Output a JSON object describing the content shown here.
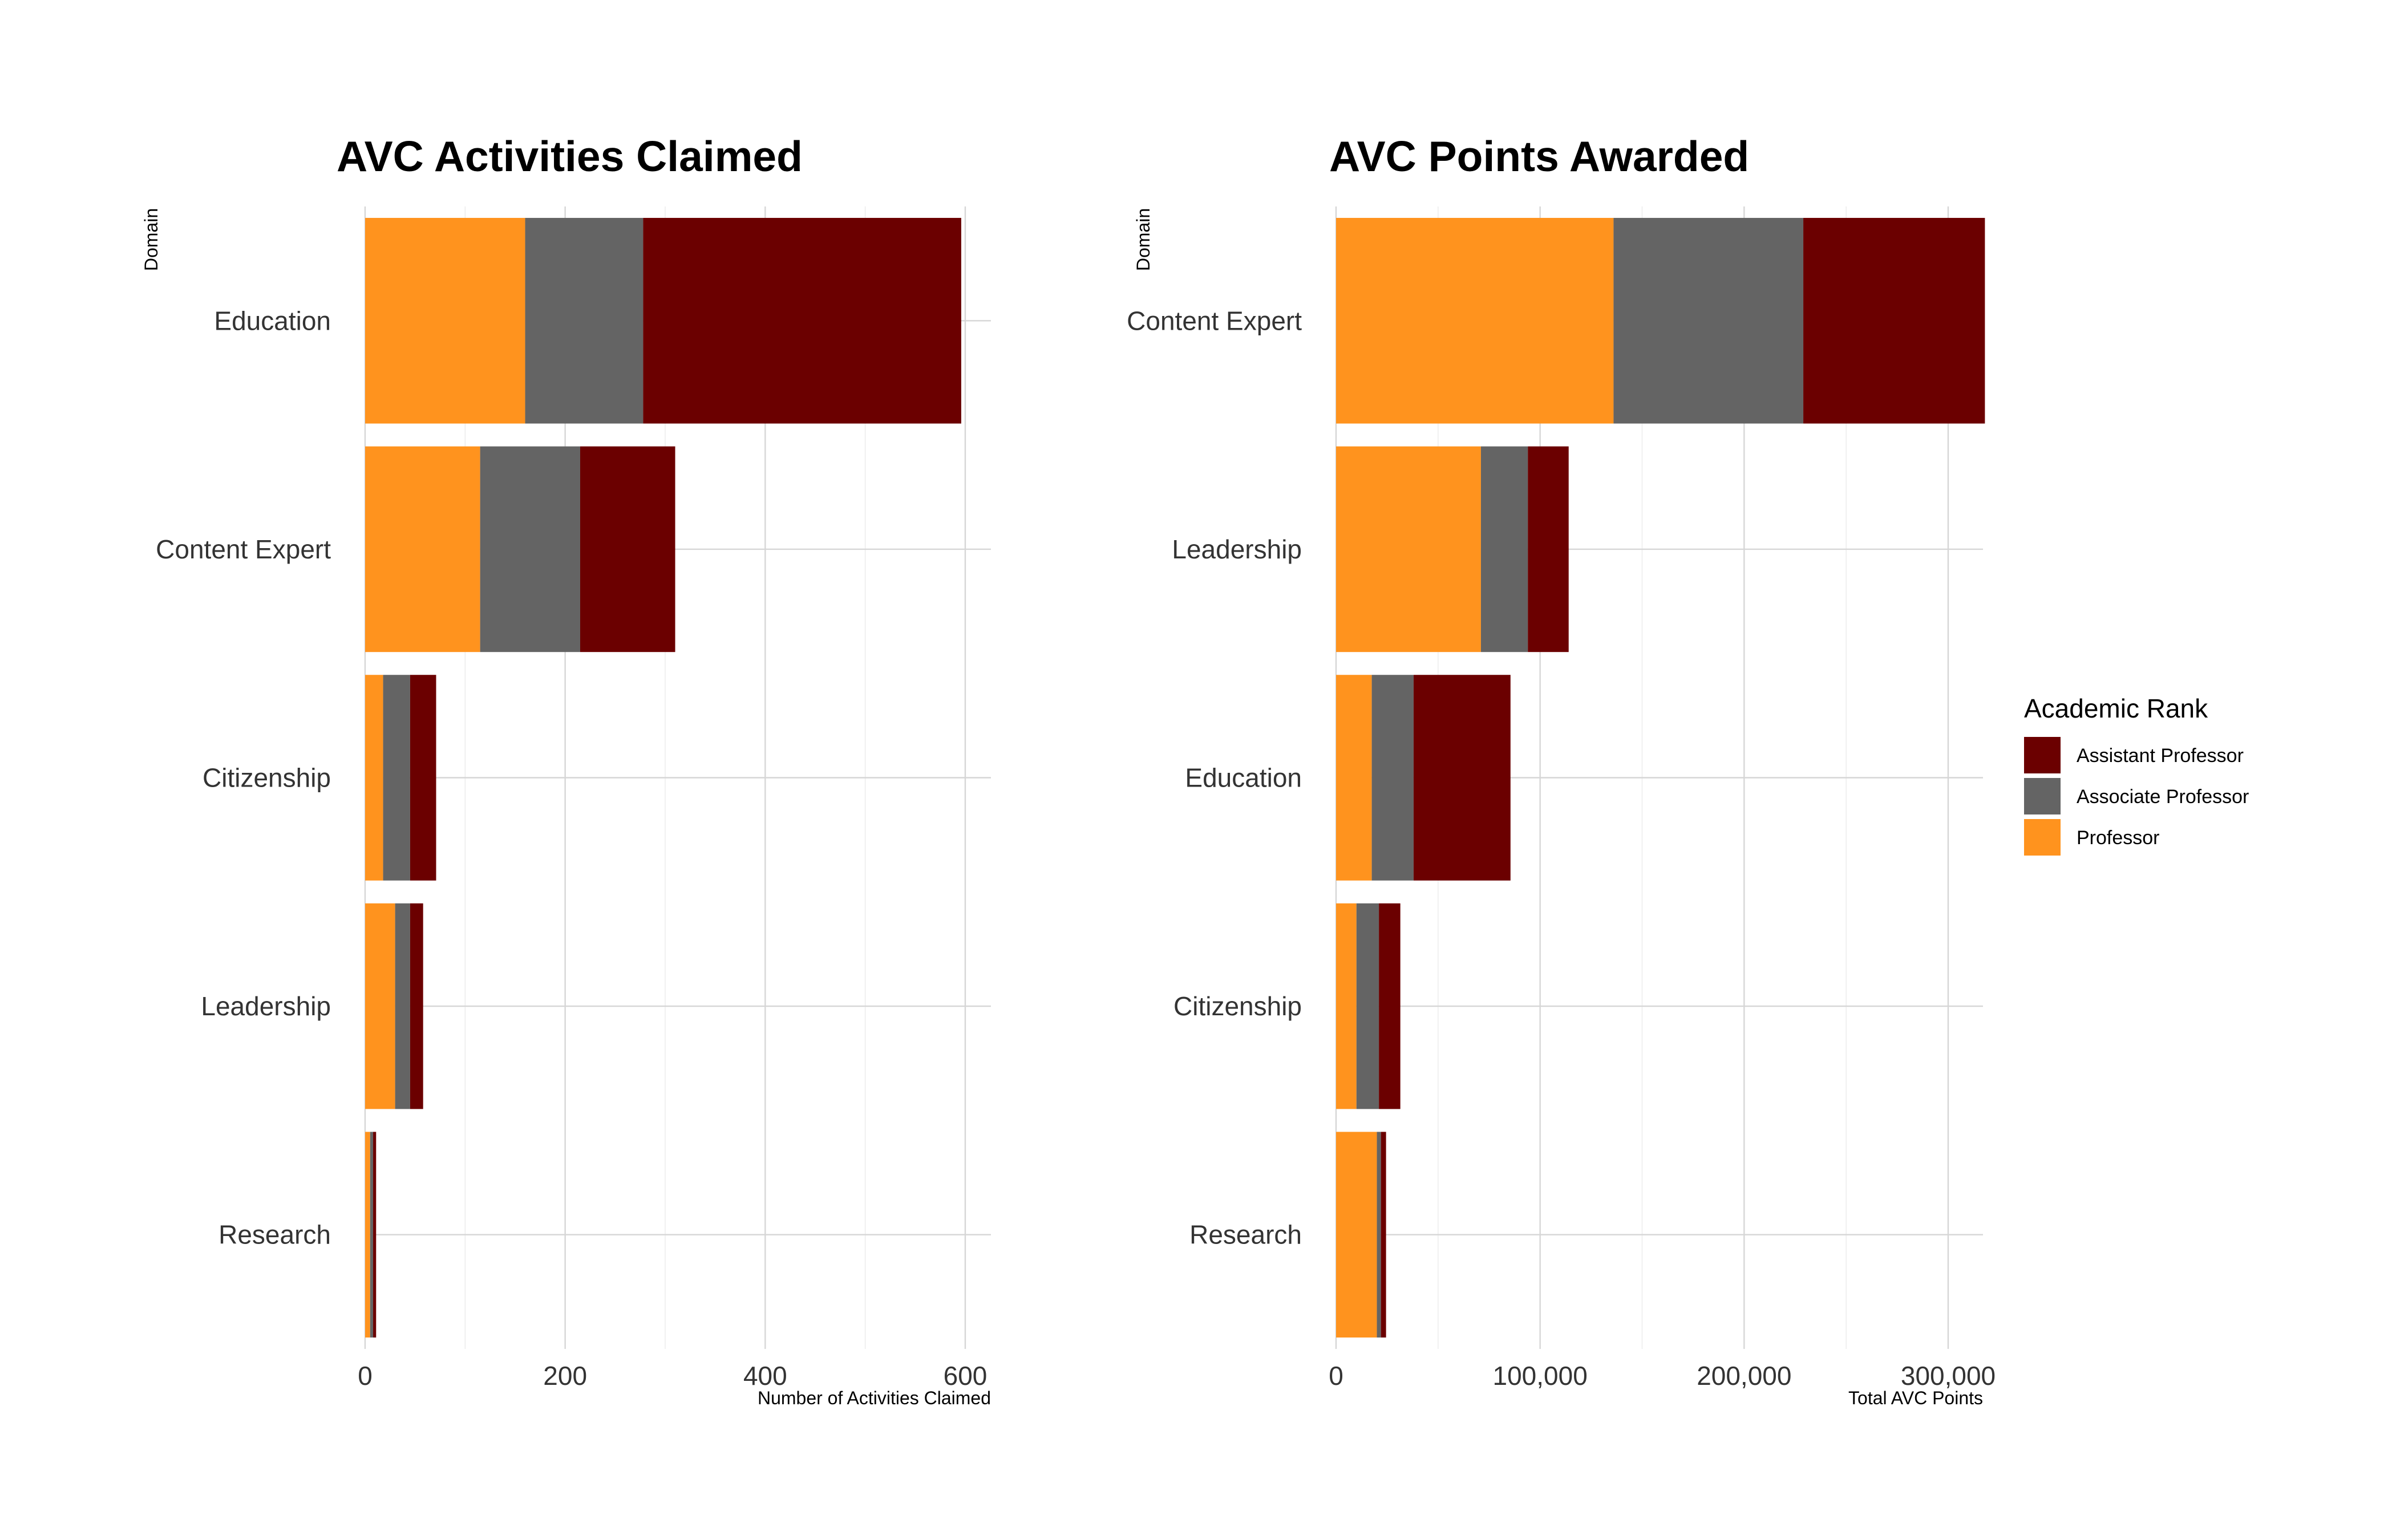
{
  "chart_data": [
    {
      "type": "bar",
      "orientation": "horizontal",
      "stacked": true,
      "title": "AVC Activities Claimed",
      "xlabel": "Number of Activities Claimed",
      "ylabel": "Domain",
      "xlim": [
        0,
        625
      ],
      "xticks": [
        0,
        200,
        400,
        600
      ],
      "xtick_labels": [
        "0",
        "200",
        "400",
        "600"
      ],
      "categories": [
        "Education",
        "Content Expert",
        "Citizenship",
        "Leadership",
        "Research"
      ],
      "series": [
        {
          "name": "Professor",
          "color": "#ff931e",
          "values": [
            160,
            115,
            18,
            30,
            5
          ]
        },
        {
          "name": "Associate Professor",
          "color": "#646464",
          "values": [
            118,
            100,
            27,
            15,
            3
          ]
        },
        {
          "name": "Assistant Professor",
          "color": "#6b0000",
          "values": [
            318,
            95,
            26,
            13,
            3
          ]
        }
      ]
    },
    {
      "type": "bar",
      "orientation": "horizontal",
      "stacked": true,
      "title": "AVC Points Awarded",
      "xlabel": "Total AVC Points",
      "ylabel": "Domain",
      "xlim": [
        0,
        320000
      ],
      "xticks": [
        0,
        100000,
        200000,
        300000
      ],
      "xtick_labels": [
        "0",
        "100,000",
        "200,000",
        "300,000"
      ],
      "categories": [
        "Content Expert",
        "Leadership",
        "Education",
        "Citizenship",
        "Research"
      ],
      "series": [
        {
          "name": "Professor",
          "color": "#ff931e",
          "values": [
            136000,
            71000,
            17500,
            10000,
            20000
          ]
        },
        {
          "name": "Associate Professor",
          "color": "#646464",
          "values": [
            93000,
            23000,
            20500,
            11000,
            2000
          ]
        },
        {
          "name": "Assistant Professor",
          "color": "#6b0000",
          "values": [
            89000,
            20000,
            47500,
            10500,
            2500
          ]
        }
      ]
    }
  ],
  "legend": {
    "title": "Academic Rank",
    "placement": "right",
    "items": [
      {
        "label": "Assistant Professor",
        "color": "#6b0000"
      },
      {
        "label": "Associate Professor",
        "color": "#646464"
      },
      {
        "label": "Professor",
        "color": "#ff931e"
      }
    ]
  }
}
